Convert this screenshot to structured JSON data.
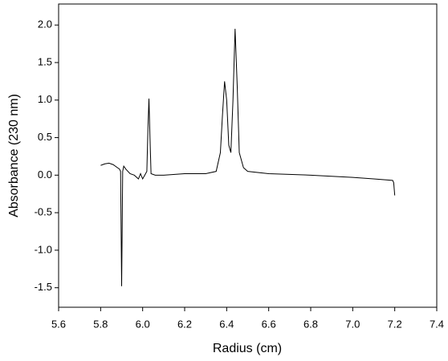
{
  "chart_data": {
    "type": "line",
    "xlabel": "Radius (cm)",
    "ylabel": "Absorbance (230 nm)",
    "x": [
      5.8,
      5.82,
      5.84,
      5.86,
      5.88,
      5.89,
      5.895,
      5.9,
      5.905,
      5.91,
      5.92,
      5.94,
      5.96,
      5.98,
      5.99,
      6.0,
      6.01,
      6.02,
      6.025,
      6.03,
      6.035,
      6.04,
      6.06,
      6.1,
      6.2,
      6.3,
      6.35,
      6.37,
      6.38,
      6.39,
      6.4,
      6.41,
      6.42,
      6.43,
      6.44,
      6.45,
      6.46,
      6.48,
      6.5,
      6.6,
      6.8,
      7.0,
      7.1,
      7.19,
      7.195,
      7.2
    ],
    "values": [
      0.13,
      0.15,
      0.16,
      0.14,
      0.1,
      0.08,
      0.05,
      -1.48,
      0.05,
      0.12,
      0.08,
      0.02,
      0.0,
      -0.05,
      0.02,
      -0.05,
      0.0,
      0.05,
      0.6,
      1.02,
      0.5,
      0.02,
      0.0,
      0.0,
      0.02,
      0.02,
      0.05,
      0.3,
      0.8,
      1.25,
      1.0,
      0.4,
      0.3,
      1.0,
      1.95,
      1.2,
      0.3,
      0.1,
      0.05,
      0.02,
      0.0,
      -0.03,
      -0.05,
      -0.07,
      -0.1,
      -0.27
    ],
    "color": "#000000",
    "xlim": [
      5.6,
      7.4
    ],
    "xticks": [
      5.6,
      5.8,
      {
        "value": 6,
        "label": "6.0"
      },
      6.2,
      6.4,
      6.6,
      6.8,
      {
        "value": 7,
        "label": "7.0"
      },
      7.2,
      7.4
    ],
    "ylim": [
      -1.76,
      2.28
    ],
    "yticks": [
      {
        "value": -1.5,
        "label": "-1.5"
      },
      {
        "value": -1,
        "label": "-1.0"
      },
      -0.5,
      {
        "value": 0,
        "label": "0.0"
      },
      0.5,
      {
        "value": 1,
        "label": "1.0"
      },
      1.5,
      {
        "value": 2,
        "label": "2.0"
      }
    ]
  }
}
